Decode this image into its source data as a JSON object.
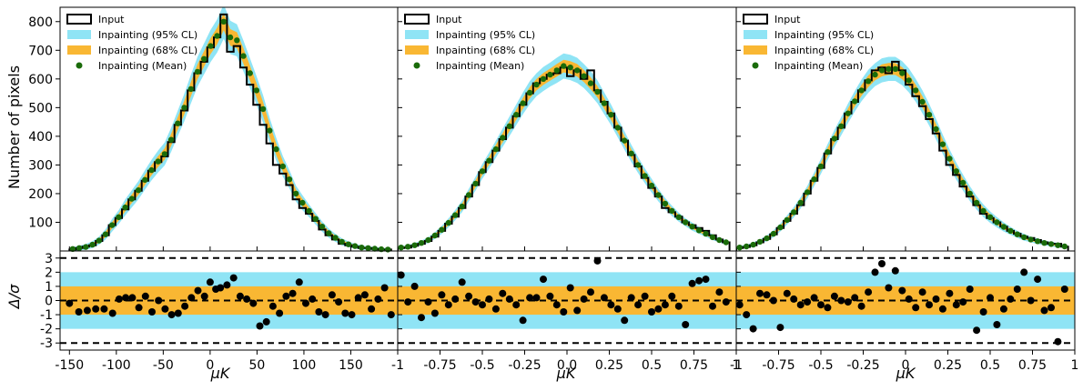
{
  "chart_data": {
    "type": "histogram",
    "ylabel_top": "Number of pixels",
    "ylabel_bottom": "Δ/σ",
    "xlabel": "μK",
    "top_yticks": [
      100,
      200,
      300,
      400,
      500,
      600,
      700,
      800
    ],
    "top_ylim": [
      0,
      850
    ],
    "bottom_yticks": [
      3,
      2,
      1,
      0,
      -1,
      -2,
      -3
    ],
    "bottom_ylim": [
      -3.5,
      3.5
    ],
    "bottom_bands": {
      "sigma1": [
        -1,
        1
      ],
      "sigma2": [
        -2,
        2
      ],
      "sigma3_lines": [
        -3,
        3
      ]
    },
    "legend": [
      {
        "key": "input",
        "label": "Input"
      },
      {
        "key": "ci95",
        "label": "Inpainting (95% CL)"
      },
      {
        "key": "ci68",
        "label": "Inpainting (68% CL)"
      },
      {
        "key": "mean",
        "label": "Inpainting (Mean)"
      }
    ],
    "colors": {
      "input": "#000000",
      "ci95": "#8fe4f5",
      "ci68": "#f9b733",
      "mean": "#1a6b0a"
    },
    "panels": [
      {
        "xlim": [
          -160,
          200
        ],
        "xticks": [
          -150,
          -100,
          -50,
          0,
          50,
          100,
          150
        ],
        "xtick_labels": [
          "-150",
          "-100",
          "-50",
          "0",
          "50",
          "100",
          "150"
        ],
        "bin_edges": [
          -150,
          -143,
          -136,
          -129,
          -122,
          -115,
          -108,
          -101,
          -94,
          -87,
          -80,
          -73,
          -66,
          -59,
          -52,
          -45,
          -38,
          -31,
          -24,
          -17,
          -10,
          -3,
          4,
          11,
          18,
          25,
          32,
          39,
          46,
          53,
          60,
          67,
          74,
          81,
          88,
          95,
          102,
          109,
          116,
          123,
          130,
          137,
          144,
          151,
          158,
          165,
          172,
          179,
          186,
          193
        ],
        "input_counts": [
          5,
          10,
          15,
          20,
          35,
          55,
          90,
          115,
          145,
          180,
          210,
          245,
          280,
          310,
          330,
          380,
          440,
          490,
          560,
          620,
          660,
          710,
          745,
          825,
          695,
          715,
          640,
          580,
          510,
          440,
          375,
          300,
          270,
          230,
          180,
          150,
          130,
          105,
          75,
          55,
          40,
          25,
          20,
          15,
          10,
          10,
          7,
          5,
          5
        ],
        "mean": [
          7,
          10,
          14,
          22,
          36,
          58,
          90,
          118,
          152,
          182,
          212,
          248,
          282,
          312,
          338,
          388,
          445,
          500,
          565,
          625,
          670,
          715,
          750,
          800,
          745,
          735,
          680,
          620,
          560,
          495,
          420,
          355,
          295,
          250,
          200,
          168,
          140,
          112,
          85,
          62,
          46,
          32,
          23,
          17,
          12,
          10,
          8,
          6,
          5
        ],
        "ci68_halfwidth": [
          3,
          4,
          5,
          6,
          7,
          9,
          11,
          12,
          14,
          15,
          16,
          17,
          18,
          19,
          20,
          21,
          22,
          24,
          25,
          26,
          27,
          28,
          29,
          30,
          29,
          28,
          27,
          26,
          25,
          24,
          22,
          20,
          18,
          16,
          14,
          13,
          11,
          10,
          9,
          8,
          7,
          6,
          5,
          4,
          4,
          3,
          3,
          3,
          2
        ],
        "ci95_halfwidth": [
          6,
          8,
          10,
          12,
          14,
          18,
          22,
          24,
          28,
          30,
          32,
          34,
          36,
          38,
          40,
          42,
          44,
          48,
          50,
          52,
          54,
          56,
          58,
          60,
          58,
          56,
          54,
          52,
          50,
          48,
          44,
          40,
          36,
          32,
          28,
          26,
          22,
          20,
          18,
          16,
          14,
          12,
          10,
          8,
          8,
          6,
          6,
          6,
          4
        ],
        "residual_x": [
          -146,
          -139,
          -132,
          -125,
          -118,
          -111,
          -104,
          -97,
          -90,
          -83,
          -76,
          -69,
          -62,
          -55,
          -48,
          -41,
          -34,
          -27,
          -20,
          -13,
          -6,
          1,
          8,
          15,
          22,
          29,
          36,
          43,
          50,
          57,
          64,
          71,
          78,
          85,
          92,
          99,
          106,
          113,
          120,
          127,
          134,
          141,
          148,
          155,
          162,
          169,
          176,
          183,
          190
        ],
        "residual_y": [
          -0.2,
          -0.8,
          -0.7,
          -0.6,
          -0.6,
          -0.9,
          0.1,
          0.2,
          0.2,
          -0.5,
          0.3,
          -0.8,
          0.0,
          -0.6,
          -1.0,
          -0.9,
          -0.4,
          0.2,
          0.7,
          0.3,
          1.3,
          0.8,
          0.9,
          1.1,
          1.6,
          0.3,
          0.1,
          -0.2,
          -1.8,
          -1.5,
          -0.4,
          -0.9,
          0.3,
          0.5,
          1.3,
          -0.2,
          0.1,
          -0.8,
          -1.0,
          0.4,
          -0.1,
          -0.9,
          -1.0,
          0.2,
          0.4,
          -0.6,
          0.1,
          0.9,
          -1.0
        ],
        "residual_x_override": [
          -150,
          -140,
          -131,
          -122,
          -113,
          -104,
          -97,
          -90,
          -83,
          -76,
          -69,
          -62,
          -55,
          -48,
          -41,
          -34,
          -27,
          -20,
          -13,
          -6,
          0,
          6,
          11,
          18,
          25,
          32,
          39,
          46,
          53,
          60,
          67,
          74,
          81,
          88,
          95,
          102,
          109,
          116,
          123,
          130,
          137,
          144,
          151,
          158,
          165,
          172,
          179,
          186,
          193
        ]
      },
      {
        "xlim": [
          -1.0,
          1.0
        ],
        "xticks": [
          -1,
          -0.75,
          -0.5,
          -0.25,
          0,
          0.25,
          0.5,
          0.75,
          1
        ],
        "xtick_labels": [
          "-1",
          "-0.75",
          "-0.5",
          "-0.25",
          "0.0",
          "0.25",
          "0.5",
          "0.75",
          "1"
        ],
        "bin_edges": [
          -1.0,
          -0.96,
          -0.92,
          -0.88,
          -0.84,
          -0.8,
          -0.76,
          -0.72,
          -0.68,
          -0.64,
          -0.6,
          -0.56,
          -0.52,
          -0.48,
          -0.44,
          -0.4,
          -0.36,
          -0.32,
          -0.28,
          -0.24,
          -0.2,
          -0.16,
          -0.12,
          -0.08,
          -0.04,
          0.0,
          0.04,
          0.08,
          0.12,
          0.16,
          0.2,
          0.24,
          0.28,
          0.32,
          0.36,
          0.4,
          0.44,
          0.48,
          0.52,
          0.56,
          0.6,
          0.64,
          0.68,
          0.72,
          0.76,
          0.8,
          0.84,
          0.88,
          0.92,
          0.96
        ],
        "input_counts": [
          10,
          12,
          18,
          25,
          35,
          50,
          70,
          95,
          120,
          150,
          190,
          230,
          275,
          310,
          350,
          390,
          430,
          470,
          510,
          550,
          585,
          600,
          615,
          620,
          640,
          610,
          630,
          600,
          630,
          560,
          520,
          480,
          430,
          385,
          335,
          295,
          255,
          220,
          190,
          150,
          135,
          120,
          100,
          90,
          80,
          70,
          55,
          40,
          30
        ],
        "mean": [
          12,
          15,
          20,
          28,
          38,
          54,
          74,
          98,
          125,
          155,
          195,
          235,
          278,
          315,
          355,
          395,
          435,
          475,
          515,
          552,
          580,
          600,
          615,
          630,
          645,
          640,
          630,
          610,
          585,
          555,
          515,
          475,
          430,
          385,
          340,
          300,
          262,
          228,
          195,
          165,
          140,
          118,
          100,
          85,
          72,
          60,
          48,
          38,
          30
        ],
        "ci68_halfwidth": [
          3,
          3,
          4,
          4,
          5,
          6,
          7,
          8,
          9,
          10,
          11,
          12,
          13,
          14,
          15,
          16,
          17,
          18,
          19,
          20,
          20,
          21,
          21,
          22,
          22,
          22,
          22,
          21,
          21,
          20,
          19,
          18,
          17,
          16,
          15,
          14,
          13,
          12,
          11,
          10,
          9,
          8,
          7,
          7,
          6,
          5,
          5,
          4,
          4
        ],
        "ci95_halfwidth": [
          6,
          6,
          8,
          8,
          10,
          12,
          14,
          16,
          18,
          20,
          22,
          24,
          26,
          28,
          30,
          32,
          34,
          36,
          38,
          40,
          40,
          42,
          42,
          44,
          44,
          44,
          44,
          42,
          42,
          40,
          38,
          36,
          34,
          32,
          30,
          28,
          26,
          24,
          22,
          20,
          18,
          16,
          14,
          14,
          12,
          10,
          10,
          8,
          8
        ],
        "residual_x": [
          -0.98,
          -0.94,
          -0.9,
          -0.86,
          -0.82,
          -0.78,
          -0.74,
          -0.7,
          -0.66,
          -0.62,
          -0.58,
          -0.54,
          -0.5,
          -0.46,
          -0.42,
          -0.38,
          -0.34,
          -0.3,
          -0.26,
          -0.22,
          -0.18,
          -0.14,
          -0.1,
          -0.06,
          -0.02,
          0.02,
          0.06,
          0.1,
          0.14,
          0.18,
          0.22,
          0.26,
          0.3,
          0.34,
          0.38,
          0.42,
          0.46,
          0.5,
          0.54,
          0.58,
          0.62,
          0.66,
          0.7,
          0.74,
          0.78,
          0.82,
          0.86,
          0.9,
          0.94
        ],
        "residual_y": [
          1.8,
          -0.1,
          1.0,
          -1.2,
          -0.1,
          -0.9,
          0.4,
          -0.3,
          0.1,
          1.3,
          0.3,
          -0.1,
          -0.3,
          0.1,
          -0.6,
          0.5,
          0.1,
          -0.3,
          -1.4,
          0.2,
          0.2,
          1.5,
          0.3,
          -0.3,
          -0.8,
          0.9,
          -0.7,
          0.1,
          0.6,
          2.8,
          0.2,
          -0.3,
          -0.6,
          -1.4,
          0.2,
          -0.3,
          0.3,
          -0.8,
          -0.6,
          -0.3,
          0.3,
          -0.4,
          -1.7,
          1.2,
          1.4,
          1.5,
          -0.4,
          0.6,
          -0.1
        ]
      },
      {
        "xlim": [
          -1.0,
          1.0
        ],
        "xticks": [
          -1,
          -0.75,
          -0.5,
          -0.25,
          0,
          0.25,
          0.5,
          0.75,
          1
        ],
        "xtick_labels": [
          "-1",
          "-0.75",
          "-0.5",
          "-0.25",
          "0",
          "0.25",
          "0.5",
          "0.75",
          "1"
        ],
        "bin_edges": [
          -1.0,
          -0.96,
          -0.92,
          -0.88,
          -0.84,
          -0.8,
          -0.76,
          -0.72,
          -0.68,
          -0.64,
          -0.6,
          -0.56,
          -0.52,
          -0.48,
          -0.44,
          -0.4,
          -0.36,
          -0.32,
          -0.28,
          -0.24,
          -0.2,
          -0.16,
          -0.12,
          -0.08,
          -0.04,
          0.0,
          0.04,
          0.08,
          0.12,
          0.16,
          0.2,
          0.24,
          0.28,
          0.32,
          0.36,
          0.4,
          0.44,
          0.48,
          0.52,
          0.56,
          0.6,
          0.64,
          0.68,
          0.72,
          0.76,
          0.8,
          0.84,
          0.88,
          0.92,
          0.96
        ],
        "input_counts": [
          10,
          14,
          20,
          30,
          42,
          58,
          80,
          105,
          130,
          160,
          200,
          245,
          290,
          340,
          390,
          430,
          480,
          520,
          560,
          595,
          630,
          640,
          620,
          660,
          630,
          580,
          540,
          505,
          460,
          410,
          350,
          300,
          265,
          225,
          190,
          160,
          130,
          115,
          100,
          85,
          70,
          60,
          50,
          45,
          38,
          30,
          25,
          25,
          15
        ],
        "mean": [
          12,
          16,
          22,
          32,
          44,
          60,
          82,
          108,
          135,
          168,
          205,
          250,
          295,
          345,
          392,
          435,
          480,
          522,
          560,
          592,
          615,
          630,
          635,
          635,
          620,
          595,
          560,
          520,
          475,
          425,
          372,
          322,
          278,
          238,
          200,
          168,
          140,
          118,
          100,
          84,
          70,
          58,
          48,
          40,
          34,
          28,
          24,
          20,
          16
        ],
        "ci68_halfwidth": [
          3,
          3,
          4,
          4,
          5,
          6,
          7,
          8,
          9,
          10,
          11,
          12,
          13,
          14,
          15,
          16,
          17,
          18,
          19,
          20,
          20,
          21,
          21,
          21,
          21,
          21,
          20,
          20,
          19,
          18,
          17,
          16,
          15,
          14,
          13,
          12,
          11,
          10,
          9,
          8,
          7,
          6,
          6,
          5,
          5,
          4,
          4,
          4,
          3
        ],
        "ci95_halfwidth": [
          6,
          6,
          8,
          8,
          10,
          12,
          14,
          16,
          18,
          20,
          22,
          24,
          26,
          28,
          30,
          32,
          34,
          36,
          38,
          40,
          40,
          42,
          42,
          42,
          42,
          42,
          40,
          40,
          38,
          36,
          34,
          32,
          30,
          28,
          26,
          24,
          22,
          20,
          18,
          16,
          14,
          12,
          12,
          10,
          10,
          8,
          8,
          8,
          6
        ],
        "residual_x": [
          -0.98,
          -0.94,
          -0.9,
          -0.86,
          -0.82,
          -0.78,
          -0.74,
          -0.7,
          -0.66,
          -0.62,
          -0.58,
          -0.54,
          -0.5,
          -0.46,
          -0.42,
          -0.38,
          -0.34,
          -0.3,
          -0.26,
          -0.22,
          -0.18,
          -0.14,
          -0.1,
          -0.06,
          -0.02,
          0.02,
          0.06,
          0.1,
          0.14,
          0.18,
          0.22,
          0.26,
          0.3,
          0.34,
          0.38,
          0.42,
          0.46,
          0.5,
          0.54,
          0.58,
          0.62,
          0.66,
          0.7,
          0.74,
          0.78,
          0.82,
          0.86,
          0.9,
          0.94
        ],
        "residual_y": [
          -0.3,
          -1.0,
          -2.0,
          0.5,
          0.4,
          0.0,
          -1.9,
          0.5,
          0.1,
          -0.3,
          -0.1,
          0.2,
          -0.3,
          -0.5,
          0.3,
          0.0,
          -0.1,
          0.2,
          -0.4,
          0.6,
          2.0,
          2.6,
          0.9,
          2.1,
          0.7,
          0.1,
          -0.5,
          0.6,
          -0.3,
          0.1,
          -0.6,
          0.5,
          -0.3,
          -0.1,
          0.8,
          -2.1,
          -0.8,
          0.2,
          -1.7,
          -0.6,
          0.1,
          0.8,
          2.0,
          0.0,
          1.5,
          -0.7,
          -0.5,
          -2.9,
          0.8
        ]
      }
    ]
  }
}
